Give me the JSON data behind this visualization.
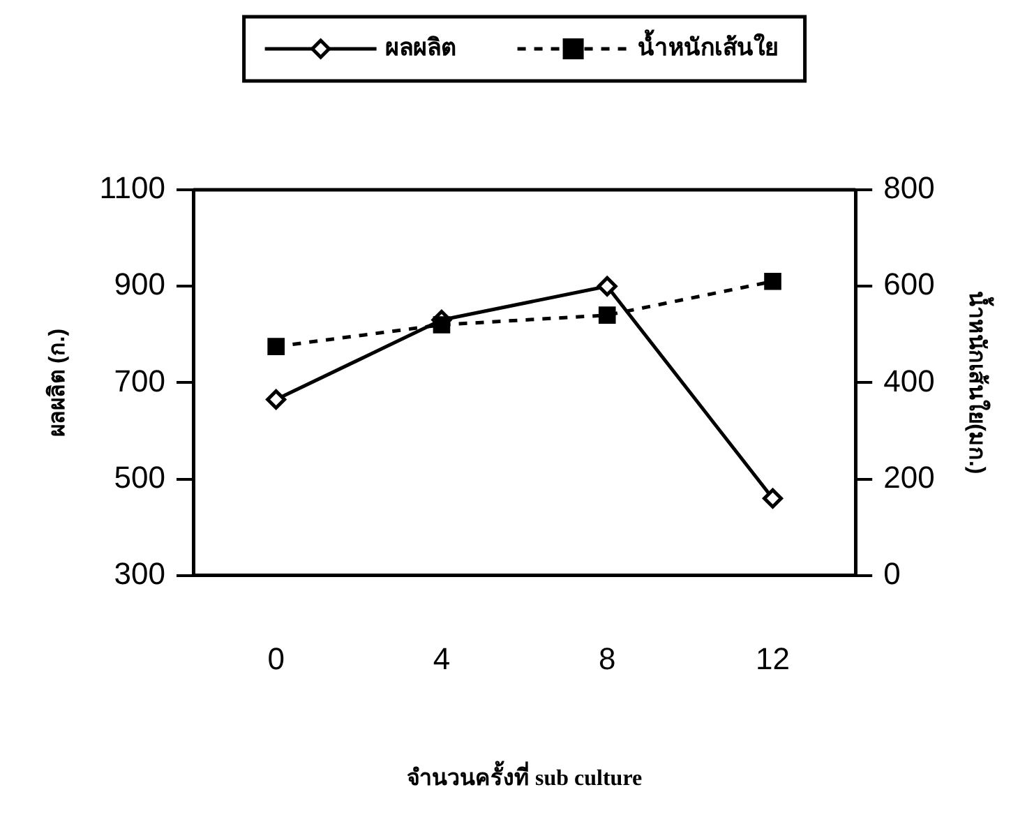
{
  "chart_data": {
    "type": "line",
    "categories": [
      "0",
      "4",
      "8",
      "12"
    ],
    "xlabel": "จำนวนครั้งที่ sub culture",
    "ylabel": "ผลผลิต (ก.)",
    "y2label": "น้ำหนักเส้นใย(มก.)",
    "series": [
      {
        "name": "ผลผลิต",
        "color": "#000000",
        "values": [
          665,
          830,
          900,
          460
        ],
        "marker": "diamond",
        "line_style": "solid"
      },
      {
        "name": "น้ำหนักเส้นใย",
        "color": "#000000",
        "values": [
          475,
          520,
          540,
          610
        ],
        "marker": "square",
        "line_style": "dashed",
        "axis": "y2"
      }
    ],
    "ylim": [
      300,
      1100
    ],
    "yticks": [
      300,
      500,
      700,
      900,
      1100
    ],
    "y2lim": [
      0,
      800
    ],
    "y2ticks": [
      0,
      200,
      400,
      600,
      800
    ],
    "grid": false,
    "legend": "top"
  }
}
